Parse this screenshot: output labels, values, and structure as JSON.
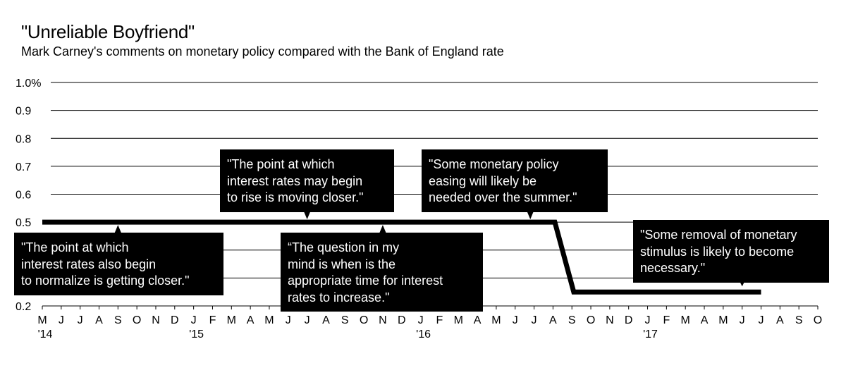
{
  "title": "\"Unreliable Boyfriend\"",
  "subtitle": "Mark Carney's comments on monetary policy compared with the Bank of England rate",
  "chart_data": {
    "type": "line",
    "x_ticks": [
      "M",
      "J",
      "J",
      "A",
      "S",
      "O",
      "N",
      "D",
      "J",
      "F",
      "M",
      "A",
      "M",
      "J",
      "J",
      "A",
      "S",
      "O",
      "N",
      "D",
      "J",
      "F",
      "M",
      "A",
      "M",
      "J",
      "J",
      "A",
      "S",
      "O",
      "N",
      "D",
      "J",
      "F",
      "M",
      "A",
      "M",
      "J",
      "J",
      "A",
      "S",
      "O"
    ],
    "year_labels": [
      {
        "label": "'14",
        "tick_index": 0
      },
      {
        "label": "'15",
        "tick_index": 8
      },
      {
        "label": "'16",
        "tick_index": 20
      },
      {
        "label": "'17",
        "tick_index": 32
      }
    ],
    "y_ticks": [
      "1.0%",
      "0.9",
      "0.8",
      "0.7",
      "0.6",
      "0.5",
      "0.4",
      "0.3",
      "0.2"
    ],
    "ylim": [
      0.2,
      1.0
    ],
    "grid": true,
    "series": [
      {
        "points": [
          {
            "date": "2014-05-01",
            "value": 0.5
          },
          {
            "date": "2016-08-04",
            "value": 0.5
          },
          {
            "date": "2016-08-04",
            "value": 0.25
          },
          {
            "date": "2017-07-01",
            "value": 0.25
          }
        ]
      }
    ],
    "annotations": [
      {
        "id": "ann-june-2014",
        "text": "\"The point at which\ninterest rates also begin\nto normalize is getting closer.\"",
        "date": "2014-09-01",
        "value": 0.5
      },
      {
        "id": "ann-july-2015",
        "text": "\"The point at which\ninterest rates may begin\nto rise is moving closer.\"",
        "date": "2015-07-01",
        "value": 0.5
      },
      {
        "id": "ann-nov-2015",
        "text": "“The question in my\nmind is when is the\nappropriate time for interest\nrates to increase.\"",
        "date": "2015-11-01",
        "value": 0.5
      },
      {
        "id": "ann-june-2016",
        "text": "\"Some monetary policy\neasing will likely be\nneeded over the summer.\"",
        "date": "2016-06-25",
        "value": 0.5
      },
      {
        "id": "ann-june-2017",
        "text": "\"Some removal of monetary\nstimulus is likely to become\nnecessary.\"",
        "date": "2017-06-01",
        "value": 0.25
      }
    ]
  }
}
